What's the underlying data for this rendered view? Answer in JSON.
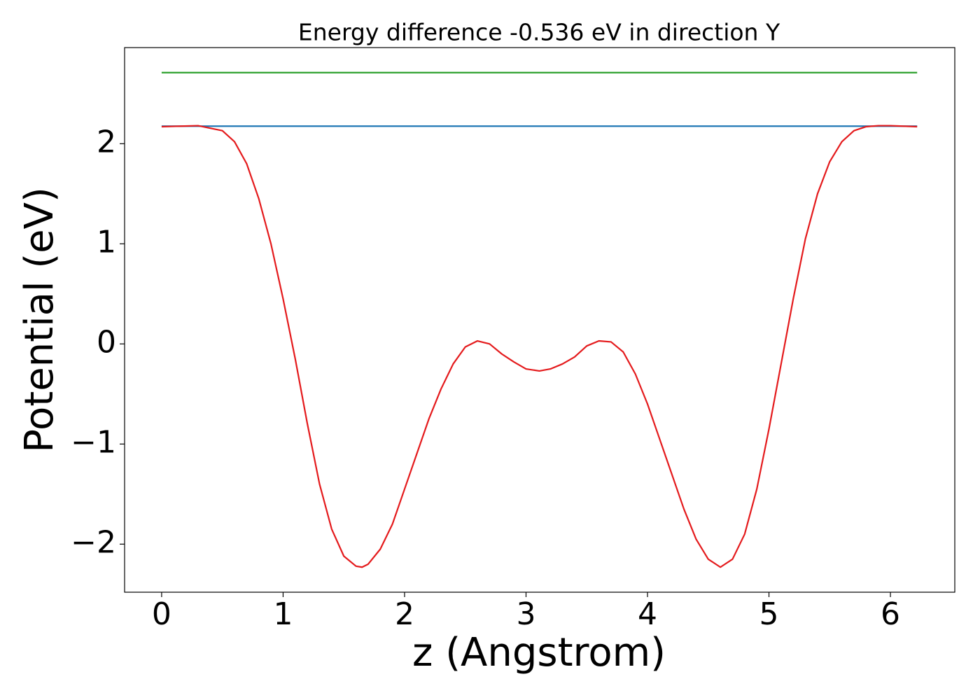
{
  "chart_data": {
    "type": "line",
    "title": "Energy difference -0.536 eV in direction Y",
    "x_label": "z (Angstrom)",
    "y_label": "Potential (eV)",
    "xlim": [
      -0.305,
      6.53
    ],
    "ylim": [
      -2.48,
      2.96
    ],
    "xticks": [
      0,
      1,
      2,
      3,
      4,
      5,
      6
    ],
    "yticks": [
      {
        "value": -2,
        "label": "−2"
      },
      {
        "value": -1,
        "label": "−1"
      },
      0,
      1,
      2
    ],
    "grid": false,
    "series": [
      {
        "color": "#1f77b4",
        "x": [
          0,
          6.22
        ],
        "values": [
          2.175,
          2.175
        ]
      },
      {
        "color": "#2ca02c",
        "x": [
          0,
          6.22
        ],
        "values": [
          2.71,
          2.71
        ]
      },
      {
        "color": "#e41a1c",
        "x": [
          0,
          0.3,
          0.5,
          0.6,
          0.7,
          0.8,
          0.9,
          1.0,
          1.1,
          1.2,
          1.3,
          1.4,
          1.5,
          1.6,
          1.65,
          1.7,
          1.8,
          1.9,
          2.0,
          2.1,
          2.2,
          2.3,
          2.4,
          2.5,
          2.6,
          2.7,
          2.8,
          2.9,
          3.0,
          3.11,
          3.2,
          3.3,
          3.4,
          3.5,
          3.6,
          3.7,
          3.8,
          3.9,
          4.0,
          4.1,
          4.2,
          4.3,
          4.4,
          4.5,
          4.6,
          4.7,
          4.8,
          4.9,
          5.0,
          5.1,
          5.2,
          5.3,
          5.4,
          5.5,
          5.6,
          5.7,
          5.8,
          5.9,
          6.0,
          6.22
        ],
        "values": [
          2.17,
          2.18,
          2.13,
          2.02,
          1.8,
          1.45,
          1.0,
          0.45,
          -0.15,
          -0.8,
          -1.4,
          -1.85,
          -2.12,
          -2.22,
          -2.23,
          -2.2,
          -2.05,
          -1.8,
          -1.45,
          -1.1,
          -0.75,
          -0.45,
          -0.2,
          -0.03,
          0.03,
          0.0,
          -0.1,
          -0.18,
          -0.25,
          -0.27,
          -0.25,
          -0.2,
          -0.13,
          -0.02,
          0.03,
          0.02,
          -0.08,
          -0.3,
          -0.6,
          -0.95,
          -1.3,
          -1.65,
          -1.95,
          -2.15,
          -2.23,
          -2.15,
          -1.9,
          -1.45,
          -0.85,
          -0.2,
          0.45,
          1.05,
          1.5,
          1.82,
          2.02,
          2.13,
          2.17,
          2.18,
          2.18,
          2.17
        ]
      }
    ]
  }
}
